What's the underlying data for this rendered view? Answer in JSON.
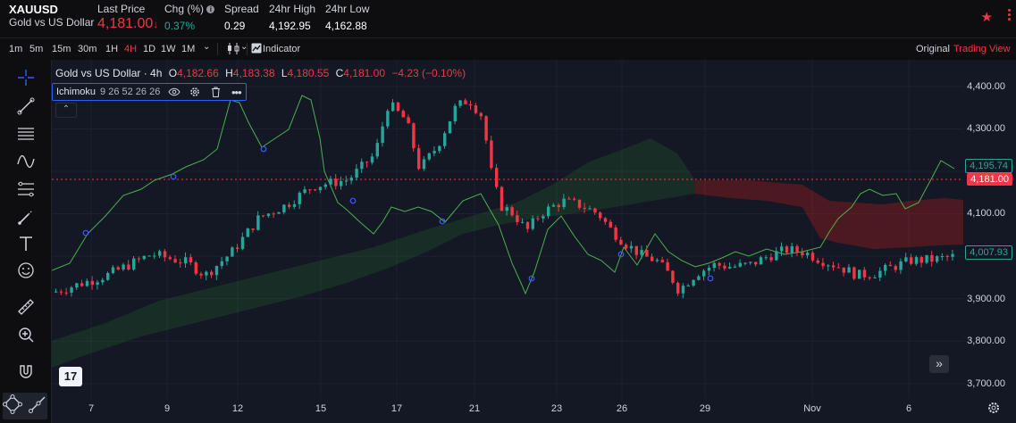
{
  "header": {
    "symbol": "XAUUSD",
    "name": "Gold vs US Dollar",
    "last_price_label": "Last Price",
    "last_price": "4,181.00",
    "last_price_arrow": "↓",
    "chg_label": "Chg (%)",
    "chg_value": "0.37%",
    "spread_label": "Spread",
    "spread_value": "0.29",
    "high_label": "24hr High",
    "high_value": "4,192.95",
    "low_label": "24hr Low",
    "low_value": "4,162.88"
  },
  "toolbar": {
    "intervals": [
      "1m",
      "5m",
      "15m",
      "30m",
      "1H",
      "4H",
      "1D",
      "1W",
      "1M"
    ],
    "active_interval": "4H",
    "indicator_label": "Indicator",
    "original_label": "Original",
    "tradingview_label": "Trading View"
  },
  "legend": {
    "title": "Gold vs US Dollar · 4h",
    "o_label": "O",
    "o_value": "4,182.66",
    "h_label": "H",
    "h_value": "4,183.38",
    "l_label": "L",
    "l_value": "4,180.55",
    "c_label": "C",
    "c_value": "4,181.00",
    "change": "−4.23 (−0.10%)"
  },
  "indicator": {
    "name": "Ichimoku",
    "params": "9 26 52 26 26"
  },
  "price_axis": [
    "4,400.00",
    "4,300.00",
    "4,200.00",
    "4,100.00",
    "4,000.00",
    "3,900.00",
    "3,800.00",
    "3,700.00"
  ],
  "price_tags": {
    "span_a": {
      "text": "4,195.74",
      "value": 4195.74
    },
    "current": {
      "text": "4,181.00",
      "value": 4181.0
    },
    "span_b": {
      "text": "4,007.93",
      "value": 4007.93
    }
  },
  "time_axis": [
    "7",
    "9",
    "12",
    "15",
    "17",
    "21",
    "23",
    "26",
    "29",
    "Nov",
    "6"
  ],
  "colors": {
    "up": "#26a69a",
    "down": "#f23645",
    "lagging_span": "#4caf50",
    "cloud_bull": "#2e7d32",
    "cloud_bear": "#b71c1c",
    "background": "#141824"
  },
  "icons": {
    "favorite": "star-icon",
    "more": "kebab-icon",
    "chart_type": "candles-icon",
    "indicator": "indicator-icon"
  }
}
